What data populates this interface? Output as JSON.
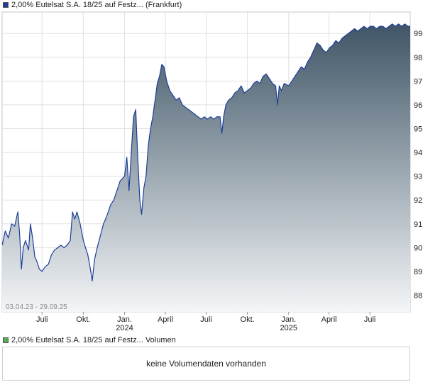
{
  "legend": {
    "price_label": "2,00% Eutelsat S.A. 18/25 auf Festz... (Frankfurt)",
    "price_color": "#1c3f9a",
    "volume_label": "2,00% Eutelsat S.A. 18/25 auf Festz... Volumen",
    "volume_color": "#55aa55"
  },
  "volume_panel": {
    "message": "keine Volumendaten vorhanden"
  },
  "chart_data": {
    "type": "area",
    "date_range_label": "03.04.23 - 29.09.25",
    "x_range": [
      "2023-04-03",
      "2025-09-29"
    ],
    "ylim": [
      87.3,
      99.9
    ],
    "y_ticks": [
      88,
      89,
      90,
      91,
      92,
      93,
      94,
      95,
      96,
      97,
      98,
      99
    ],
    "x_ticks": [
      {
        "date": "2023-07-01",
        "label": "Juli",
        "year": ""
      },
      {
        "date": "2023-10-01",
        "label": "Okt.",
        "year": ""
      },
      {
        "date": "2024-01-01",
        "label": "Jan.",
        "year": "2024"
      },
      {
        "date": "2024-04-01",
        "label": "April",
        "year": ""
      },
      {
        "date": "2024-07-01",
        "label": "Juli",
        "year": ""
      },
      {
        "date": "2024-10-01",
        "label": "Okt.",
        "year": ""
      },
      {
        "date": "2025-01-01",
        "label": "Jan.",
        "year": "2025"
      },
      {
        "date": "2025-04-01",
        "label": "April",
        "year": ""
      },
      {
        "date": "2025-07-01",
        "label": "Juli",
        "year": ""
      }
    ],
    "grid": true,
    "line_color": "#1c3f9a",
    "fill_top_color": "#3f5566",
    "fill_bottom_color": "#f4f6f8",
    "series": [
      {
        "values": [
          [
            "2023-04-03",
            90.1
          ],
          [
            "2023-04-10",
            90.7
          ],
          [
            "2023-04-17",
            90.4
          ],
          [
            "2023-04-24",
            91.0
          ],
          [
            "2023-05-01",
            90.9
          ],
          [
            "2023-05-08",
            91.5
          ],
          [
            "2023-05-12",
            90.6
          ],
          [
            "2023-05-16",
            89.1
          ],
          [
            "2023-05-20",
            90.0
          ],
          [
            "2023-05-25",
            90.3
          ],
          [
            "2023-06-01",
            89.9
          ],
          [
            "2023-06-05",
            91.0
          ],
          [
            "2023-06-10",
            90.4
          ],
          [
            "2023-06-15",
            89.6
          ],
          [
            "2023-06-20",
            89.4
          ],
          [
            "2023-06-25",
            89.1
          ],
          [
            "2023-07-01",
            89.0
          ],
          [
            "2023-07-08",
            89.2
          ],
          [
            "2023-07-15",
            89.3
          ],
          [
            "2023-07-22",
            89.7
          ],
          [
            "2023-07-29",
            89.9
          ],
          [
            "2023-08-05",
            90.0
          ],
          [
            "2023-08-12",
            90.1
          ],
          [
            "2023-08-19",
            90.0
          ],
          [
            "2023-08-26",
            90.1
          ],
          [
            "2023-09-02",
            90.3
          ],
          [
            "2023-09-07",
            91.5
          ],
          [
            "2023-09-12",
            91.2
          ],
          [
            "2023-09-17",
            91.5
          ],
          [
            "2023-09-24",
            91.0
          ],
          [
            "2023-10-01",
            90.3
          ],
          [
            "2023-10-06",
            90.0
          ],
          [
            "2023-10-11",
            89.7
          ],
          [
            "2023-10-16",
            89.2
          ],
          [
            "2023-10-21",
            88.6
          ],
          [
            "2023-10-26",
            89.5
          ],
          [
            "2023-11-01",
            90.0
          ],
          [
            "2023-11-08",
            90.5
          ],
          [
            "2023-11-15",
            91.0
          ],
          [
            "2023-11-22",
            91.3
          ],
          [
            "2023-12-01",
            91.8
          ],
          [
            "2023-12-08",
            92.0
          ],
          [
            "2023-12-15",
            92.4
          ],
          [
            "2023-12-22",
            92.8
          ],
          [
            "2024-01-01",
            93.0
          ],
          [
            "2024-01-06",
            93.8
          ],
          [
            "2024-01-11",
            92.4
          ],
          [
            "2024-01-16",
            94.0
          ],
          [
            "2024-01-21",
            95.5
          ],
          [
            "2024-01-26",
            95.8
          ],
          [
            "2024-01-30",
            94.0
          ],
          [
            "2024-02-04",
            92.0
          ],
          [
            "2024-02-08",
            91.4
          ],
          [
            "2024-02-13",
            92.5
          ],
          [
            "2024-02-18",
            93.0
          ],
          [
            "2024-02-23",
            94.3
          ],
          [
            "2024-02-28",
            95.0
          ],
          [
            "2024-03-04",
            95.5
          ],
          [
            "2024-03-09",
            96.2
          ],
          [
            "2024-03-14",
            96.9
          ],
          [
            "2024-03-19",
            97.2
          ],
          [
            "2024-03-24",
            97.7
          ],
          [
            "2024-03-29",
            97.6
          ],
          [
            "2024-04-04",
            97.0
          ],
          [
            "2024-04-11",
            96.6
          ],
          [
            "2024-04-18",
            96.4
          ],
          [
            "2024-04-25",
            96.2
          ],
          [
            "2024-05-02",
            96.3
          ],
          [
            "2024-05-09",
            96.0
          ],
          [
            "2024-05-16",
            95.9
          ],
          [
            "2024-05-23",
            95.8
          ],
          [
            "2024-05-30",
            95.7
          ],
          [
            "2024-06-06",
            95.6
          ],
          [
            "2024-06-13",
            95.5
          ],
          [
            "2024-06-20",
            95.4
          ],
          [
            "2024-06-27",
            95.5
          ],
          [
            "2024-07-04",
            95.4
          ],
          [
            "2024-07-11",
            95.5
          ],
          [
            "2024-07-18",
            95.4
          ],
          [
            "2024-07-25",
            95.5
          ],
          [
            "2024-08-01",
            95.5
          ],
          [
            "2024-08-05",
            94.8
          ],
          [
            "2024-08-09",
            95.5
          ],
          [
            "2024-08-14",
            96.0
          ],
          [
            "2024-08-20",
            96.2
          ],
          [
            "2024-08-27",
            96.3
          ],
          [
            "2024-09-03",
            96.5
          ],
          [
            "2024-09-10",
            96.6
          ],
          [
            "2024-09-17",
            96.8
          ],
          [
            "2024-09-24",
            96.5
          ],
          [
            "2024-10-01",
            96.6
          ],
          [
            "2024-10-08",
            96.7
          ],
          [
            "2024-10-15",
            96.9
          ],
          [
            "2024-10-22",
            97.0
          ],
          [
            "2024-10-29",
            96.9
          ],
          [
            "2024-11-05",
            97.2
          ],
          [
            "2024-11-12",
            97.3
          ],
          [
            "2024-11-19",
            97.1
          ],
          [
            "2024-11-26",
            96.9
          ],
          [
            "2024-12-03",
            96.8
          ],
          [
            "2024-12-07",
            96.0
          ],
          [
            "2024-12-11",
            96.8
          ],
          [
            "2024-12-16",
            96.6
          ],
          [
            "2024-12-22",
            96.9
          ],
          [
            "2025-01-01",
            96.8
          ],
          [
            "2025-01-08",
            97.0
          ],
          [
            "2025-01-15",
            97.2
          ],
          [
            "2025-01-22",
            97.4
          ],
          [
            "2025-01-29",
            97.6
          ],
          [
            "2025-02-05",
            97.5
          ],
          [
            "2025-02-12",
            97.8
          ],
          [
            "2025-02-19",
            98.0
          ],
          [
            "2025-02-26",
            98.3
          ],
          [
            "2025-03-05",
            98.6
          ],
          [
            "2025-03-12",
            98.5
          ],
          [
            "2025-03-19",
            98.3
          ],
          [
            "2025-03-26",
            98.2
          ],
          [
            "2025-04-02",
            98.4
          ],
          [
            "2025-04-09",
            98.5
          ],
          [
            "2025-04-16",
            98.7
          ],
          [
            "2025-04-23",
            98.6
          ],
          [
            "2025-04-30",
            98.8
          ],
          [
            "2025-05-07",
            98.9
          ],
          [
            "2025-05-14",
            99.0
          ],
          [
            "2025-05-21",
            99.1
          ],
          [
            "2025-05-28",
            99.2
          ],
          [
            "2025-06-04",
            99.1
          ],
          [
            "2025-06-11",
            99.2
          ],
          [
            "2025-06-18",
            99.3
          ],
          [
            "2025-06-25",
            99.2
          ],
          [
            "2025-07-02",
            99.3
          ],
          [
            "2025-07-09",
            99.3
          ],
          [
            "2025-07-16",
            99.2
          ],
          [
            "2025-07-23",
            99.3
          ],
          [
            "2025-07-30",
            99.3
          ],
          [
            "2025-08-06",
            99.2
          ],
          [
            "2025-08-13",
            99.3
          ],
          [
            "2025-08-20",
            99.4
          ],
          [
            "2025-08-27",
            99.3
          ],
          [
            "2025-09-03",
            99.4
          ],
          [
            "2025-09-10",
            99.3
          ],
          [
            "2025-09-17",
            99.4
          ],
          [
            "2025-09-24",
            99.3
          ],
          [
            "2025-09-29",
            99.3
          ]
        ]
      }
    ]
  }
}
